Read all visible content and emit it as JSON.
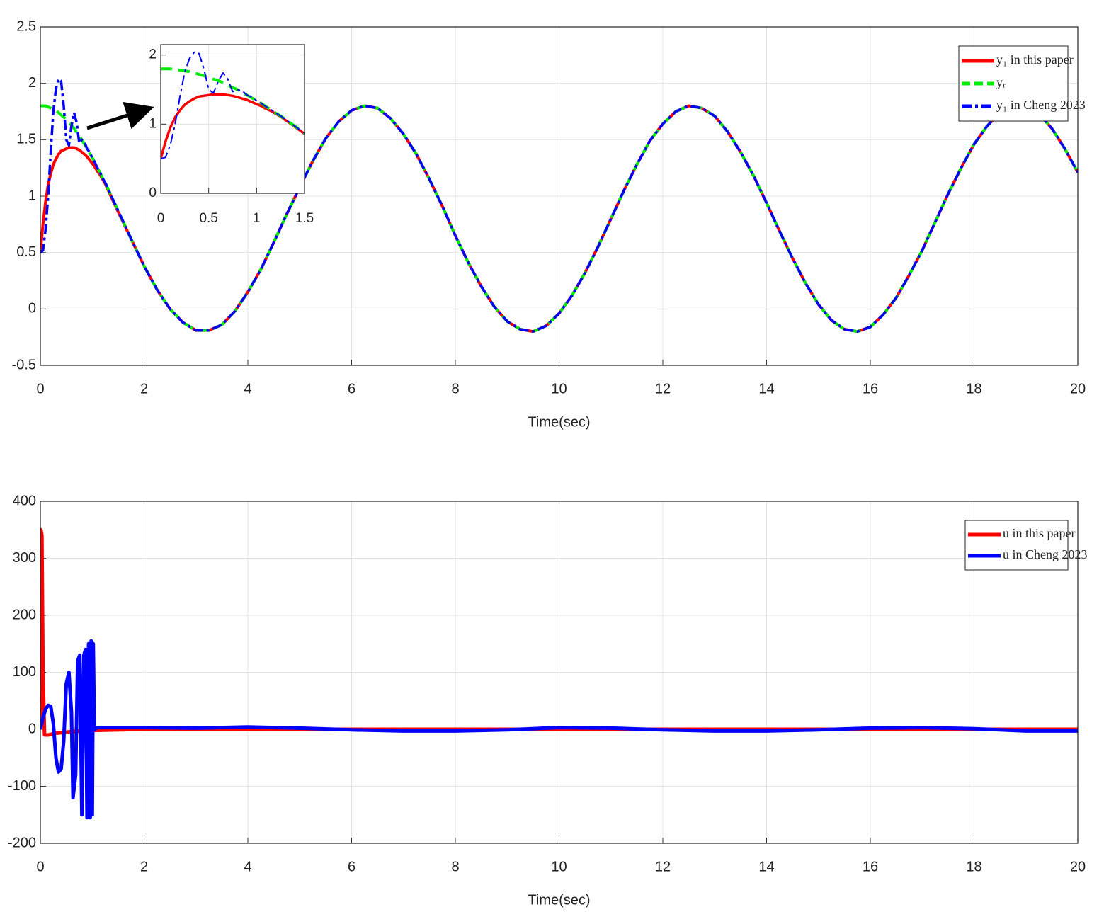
{
  "chart_data": [
    {
      "type": "line",
      "xlabel": "Time(sec)",
      "xlim": [
        0,
        20
      ],
      "ylim": [
        -0.5,
        2.5
      ],
      "xticks": [
        0,
        2,
        4,
        6,
        8,
        10,
        12,
        14,
        16,
        18,
        20
      ],
      "yticks": [
        -0.5,
        0,
        0.5,
        1,
        1.5,
        2,
        2.5
      ],
      "grid": true,
      "legend": "northeast",
      "x": [
        0,
        0.05,
        0.1,
        0.15,
        0.2,
        0.25,
        0.3,
        0.35,
        0.4,
        0.45,
        0.5,
        0.55,
        0.6,
        0.65,
        0.7,
        0.75,
        0.8,
        0.85,
        0.9,
        0.95,
        1.0,
        1.05,
        1.1,
        1.15,
        1.2,
        1.25,
        1.3,
        1.35,
        1.4,
        1.45,
        1.5,
        1.75,
        2.0,
        2.25,
        2.5,
        2.75,
        3.0,
        3.25,
        3.5,
        3.75,
        4.0,
        4.25,
        4.5,
        4.75,
        5.0,
        5.25,
        5.5,
        5.75,
        6.0,
        6.25,
        6.5,
        6.75,
        7.0,
        7.25,
        7.5,
        7.75,
        8.0,
        8.25,
        8.5,
        8.75,
        9.0,
        9.25,
        9.5,
        9.75,
        10.0,
        10.25,
        10.5,
        10.75,
        11.0,
        11.25,
        11.5,
        11.75,
        12.0,
        12.25,
        12.5,
        12.75,
        13.0,
        13.25,
        13.5,
        13.75,
        14.0,
        14.25,
        14.5,
        14.75,
        15.0,
        15.25,
        15.5,
        15.75,
        16.0,
        16.25,
        16.5,
        16.75,
        17.0,
        17.25,
        17.5,
        17.75,
        18.0,
        18.25,
        18.5,
        18.75,
        19.0,
        19.25,
        19.5,
        19.75,
        20.0
      ],
      "series": [
        {
          "name": "y₁ in this paper",
          "color": "#ff0000",
          "linestyle": "solid",
          "values": [
            0.5,
            0.75,
            0.95,
            1.1,
            1.2,
            1.28,
            1.33,
            1.37,
            1.4,
            1.41,
            1.42,
            1.43,
            1.43,
            1.43,
            1.42,
            1.41,
            1.39,
            1.37,
            1.35,
            1.32,
            1.29,
            1.26,
            1.22,
            1.19,
            1.15,
            1.11,
            1.06,
            1.01,
            0.96,
            0.91,
            0.86,
            0.62,
            0.38,
            0.17,
            0.0,
            -0.12,
            -0.19,
            -0.19,
            -0.14,
            -0.02,
            0.15,
            0.35,
            0.59,
            0.84,
            1.08,
            1.31,
            1.51,
            1.66,
            1.76,
            1.8,
            1.78,
            1.69,
            1.55,
            1.37,
            1.15,
            0.91,
            0.65,
            0.41,
            0.2,
            0.02,
            -0.11,
            -0.18,
            -0.2,
            -0.15,
            -0.04,
            0.12,
            0.32,
            0.55,
            0.8,
            1.05,
            1.28,
            1.49,
            1.64,
            1.75,
            1.8,
            1.78,
            1.71,
            1.57,
            1.39,
            1.18,
            0.94,
            0.69,
            0.45,
            0.23,
            0.04,
            -0.1,
            -0.18,
            -0.2,
            -0.16,
            -0.05,
            0.1,
            0.3,
            0.52,
            0.77,
            1.02,
            1.25,
            1.46,
            1.62,
            1.74,
            1.79,
            1.79,
            1.73,
            1.6,
            1.42,
            1.21
          ]
        },
        {
          "name": "yᵣ",
          "color": "#00ee00",
          "linestyle": "dashed",
          "values": [
            1.8,
            1.8,
            1.8,
            1.79,
            1.78,
            1.77,
            1.76,
            1.74,
            1.72,
            1.7,
            1.68,
            1.65,
            1.63,
            1.6,
            1.56,
            1.53,
            1.5,
            1.46,
            1.42,
            1.38,
            1.34,
            1.3,
            1.25,
            1.21,
            1.16,
            1.12,
            1.07,
            1.02,
            0.97,
            0.92,
            0.87,
            0.62,
            0.38,
            0.17,
            0.0,
            -0.12,
            -0.19,
            -0.19,
            -0.14,
            -0.02,
            0.15,
            0.35,
            0.59,
            0.84,
            1.08,
            1.31,
            1.51,
            1.66,
            1.76,
            1.8,
            1.78,
            1.69,
            1.55,
            1.37,
            1.15,
            0.91,
            0.65,
            0.41,
            0.2,
            0.02,
            -0.11,
            -0.18,
            -0.2,
            -0.15,
            -0.04,
            0.12,
            0.32,
            0.55,
            0.8,
            1.05,
            1.28,
            1.49,
            1.64,
            1.75,
            1.8,
            1.78,
            1.71,
            1.57,
            1.39,
            1.18,
            0.94,
            0.69,
            0.45,
            0.23,
            0.04,
            -0.1,
            -0.18,
            -0.2,
            -0.16,
            -0.05,
            0.1,
            0.3,
            0.52,
            0.77,
            1.02,
            1.25,
            1.46,
            1.62,
            1.74,
            1.79,
            1.79,
            1.73,
            1.6,
            1.42,
            1.21
          ]
        },
        {
          "name": "y₁ in Cheng 2023",
          "color": "#0000ff",
          "linestyle": "dashdot",
          "values": [
            0.5,
            0.52,
            0.7,
            1.0,
            1.4,
            1.75,
            1.95,
            2.04,
            2.02,
            1.8,
            1.5,
            1.45,
            1.62,
            1.74,
            1.65,
            1.47,
            1.5,
            1.48,
            1.42,
            1.39,
            1.34,
            1.3,
            1.25,
            1.21,
            1.16,
            1.12,
            1.07,
            1.02,
            0.97,
            0.92,
            0.87,
            0.62,
            0.38,
            0.17,
            0.0,
            -0.12,
            -0.19,
            -0.19,
            -0.14,
            -0.02,
            0.15,
            0.35,
            0.59,
            0.84,
            1.08,
            1.31,
            1.51,
            1.66,
            1.76,
            1.8,
            1.78,
            1.69,
            1.55,
            1.37,
            1.15,
            0.91,
            0.65,
            0.41,
            0.2,
            0.02,
            -0.11,
            -0.18,
            -0.2,
            -0.15,
            -0.04,
            0.12,
            0.32,
            0.55,
            0.8,
            1.05,
            1.28,
            1.49,
            1.64,
            1.75,
            1.8,
            1.78,
            1.71,
            1.57,
            1.39,
            1.18,
            0.94,
            0.69,
            0.45,
            0.23,
            0.04,
            -0.1,
            -0.18,
            -0.2,
            -0.16,
            -0.05,
            0.1,
            0.3,
            0.52,
            0.77,
            1.02,
            1.25,
            1.46,
            1.62,
            1.74,
            1.79,
            1.79,
            1.73,
            1.6,
            1.42,
            1.21
          ]
        }
      ],
      "inset": {
        "xlim": [
          0,
          1.5
        ],
        "ylim": [
          0,
          2.15
        ],
        "xticks": [
          0,
          0.5,
          1,
          1.5
        ],
        "yticks": [
          0,
          1,
          2
        ],
        "grid": true
      }
    },
    {
      "type": "line",
      "xlabel": "Time(sec)",
      "xlim": [
        0,
        20
      ],
      "ylim": [
        -200,
        400
      ],
      "xticks": [
        0,
        2,
        4,
        6,
        8,
        10,
        12,
        14,
        16,
        18,
        20
      ],
      "yticks": [
        -200,
        -100,
        0,
        100,
        200,
        300,
        400
      ],
      "grid": true,
      "legend": "northeast",
      "series": [
        {
          "name": "u in this paper",
          "color": "#ff0000",
          "linestyle": "solid",
          "x": [
            0,
            0.01,
            0.03,
            0.05,
            0.08,
            0.15,
            0.3,
            0.6,
            1.0,
            2,
            4,
            6,
            8,
            10,
            12,
            14,
            16,
            18,
            20
          ],
          "values": [
            0,
            350,
            340,
            100,
            -10,
            -10,
            -7,
            -4,
            -2,
            0,
            0,
            0,
            0,
            0,
            0,
            0,
            0,
            0,
            0
          ]
        },
        {
          "name": "u in Cheng 2023",
          "color": "#0000ff",
          "linestyle": "solid",
          "x": [
            0,
            0.05,
            0.1,
            0.15,
            0.2,
            0.25,
            0.3,
            0.35,
            0.4,
            0.45,
            0.5,
            0.55,
            0.6,
            0.63,
            0.68,
            0.72,
            0.76,
            0.8,
            0.84,
            0.87,
            0.9,
            0.93,
            0.96,
            0.98,
            1.0,
            1.02,
            1.04,
            1.1,
            2,
            3,
            4,
            5,
            6,
            7,
            8,
            9,
            10,
            11,
            12,
            13,
            14,
            15,
            16,
            17,
            18,
            19,
            20
          ],
          "values": [
            0,
            20,
            35,
            42,
            40,
            10,
            -50,
            -75,
            -70,
            -20,
            80,
            100,
            30,
            -120,
            -80,
            120,
            130,
            -150,
            130,
            140,
            -155,
            150,
            -155,
            155,
            -150,
            150,
            0,
            3,
            3,
            2,
            4,
            2,
            -1,
            -3,
            -3,
            -1,
            3,
            2,
            -1,
            -3,
            -3,
            -1,
            2,
            3,
            1,
            -3,
            -3
          ]
        }
      ]
    }
  ]
}
